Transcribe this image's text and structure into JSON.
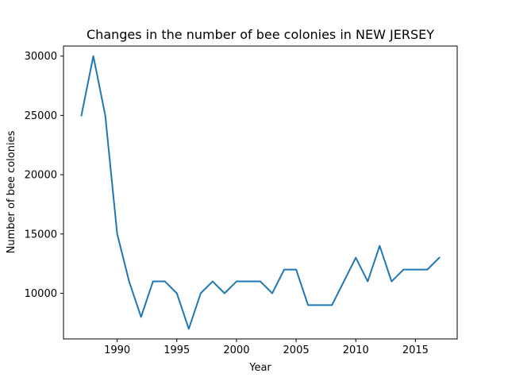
{
  "chart_data": {
    "type": "line",
    "title": "Changes in the number of bee colonies in NEW JERSEY",
    "xlabel": "Year",
    "ylabel": "Number of bee colonies",
    "xlim": [
      1985.5,
      2018.5
    ],
    "ylim": [
      6150,
      30850
    ],
    "x_ticks": [
      1990,
      1995,
      2000,
      2005,
      2010,
      2015
    ],
    "y_ticks": [
      10000,
      15000,
      20000,
      25000,
      30000
    ],
    "grid": false,
    "series": [
      {
        "color": "#1f77b4",
        "x": [
          1987,
          1988,
          1989,
          1990,
          1991,
          1992,
          1993,
          1994,
          1995,
          1996,
          1997,
          1998,
          1999,
          2000,
          2001,
          2002,
          2003,
          2004,
          2005,
          2006,
          2007,
          2008,
          2009,
          2010,
          2011,
          2012,
          2013,
          2014,
          2015,
          2016,
          2017
        ],
        "y": [
          25000,
          30000,
          25000,
          15000,
          11000,
          8000,
          11000,
          11000,
          10000,
          7000,
          10000,
          11000,
          10000,
          11000,
          11000,
          11000,
          10000,
          12000,
          12000,
          9000,
          9000,
          9000,
          11000,
          13000,
          11000,
          14000,
          11000,
          12000,
          12000,
          12000,
          13000
        ]
      }
    ]
  }
}
